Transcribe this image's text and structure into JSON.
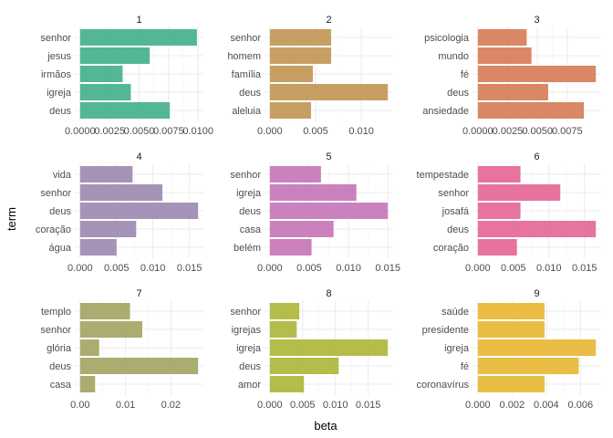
{
  "chart_data": {
    "type": "bar",
    "orientation": "horizontal",
    "layout": "facet-grid-3x3",
    "xlabel": "beta",
    "ylabel": "term",
    "grid": true,
    "legend": "none",
    "panels": [
      {
        "title": "1",
        "color": "#4bb38e",
        "categories": [
          "senhor",
          "jesus",
          "irmãos",
          "igreja",
          "deus"
        ],
        "values": [
          0.0099,
          0.0059,
          0.0036,
          0.0043,
          0.0076
        ],
        "xlim": [
          0,
          0.01
        ],
        "xticks": [
          0,
          0.0025,
          0.005,
          0.0075,
          0.01
        ],
        "xtick_labels": [
          "0.0000",
          "0.0025",
          "0.0050",
          "0.0075",
          "0.0100"
        ]
      },
      {
        "title": "2",
        "color": "#c49a5b",
        "categories": [
          "senhor",
          "homem",
          "família",
          "deus",
          "aleluia"
        ],
        "values": [
          0.0067,
          0.0067,
          0.0047,
          0.0129,
          0.0045
        ],
        "xlim": [
          0,
          0.0129
        ],
        "xticks": [
          0,
          0.005,
          0.01
        ],
        "xtick_labels": [
          "0.000",
          "0.005",
          "0.010"
        ]
      },
      {
        "title": "3",
        "color": "#d7815f",
        "categories": [
          "psicologia",
          "mundo",
          "fé",
          "deus",
          "ansiedade"
        ],
        "values": [
          0.0041,
          0.0045,
          0.0099,
          0.0059,
          0.0089
        ],
        "xlim": [
          0,
          0.0099
        ],
        "xticks": [
          0,
          0.0025,
          0.005,
          0.0075
        ],
        "xtick_labels": [
          "0.0000",
          "0.0025",
          "0.0050",
          "0.0075"
        ]
      },
      {
        "title": "4",
        "color": "#a18db4",
        "categories": [
          "vida",
          "senhor",
          "deus",
          "coração",
          "água"
        ],
        "values": [
          0.0072,
          0.0113,
          0.0162,
          0.0077,
          0.005
        ],
        "xlim": [
          0,
          0.0162
        ],
        "xticks": [
          0,
          0.005,
          0.01,
          0.015
        ],
        "xtick_labels": [
          "0.000",
          "0.005",
          "0.010",
          "0.015"
        ]
      },
      {
        "title": "5",
        "color": "#c87ab9",
        "categories": [
          "senhor",
          "igreja",
          "deus",
          "casa",
          "belém"
        ],
        "values": [
          0.0065,
          0.011,
          0.015,
          0.0081,
          0.0053
        ],
        "xlim": [
          0,
          0.015
        ],
        "xticks": [
          0,
          0.005,
          0.01,
          0.015
        ],
        "xtick_labels": [
          "0.000",
          "0.005",
          "0.010",
          "0.015"
        ]
      },
      {
        "title": "6",
        "color": "#e56d9a",
        "categories": [
          "tempestade",
          "senhor",
          "josafá",
          "deus",
          "coração"
        ],
        "values": [
          0.006,
          0.0116,
          0.006,
          0.0166,
          0.0055
        ],
        "xlim": [
          0,
          0.0166
        ],
        "xticks": [
          0,
          0.005,
          0.01,
          0.015
        ],
        "xtick_labels": [
          "0.000",
          "0.005",
          "0.010",
          "0.015"
        ]
      },
      {
        "title": "7",
        "color": "#a7a868",
        "categories": [
          "templo",
          "senhor",
          "glória",
          "deus",
          "casa"
        ],
        "values": [
          0.011,
          0.0137,
          0.0042,
          0.026,
          0.0033
        ],
        "xlim": [
          0,
          0.026
        ],
        "xticks": [
          0,
          0.01,
          0.02
        ],
        "xtick_labels": [
          "0.00",
          "0.01",
          "0.02"
        ]
      },
      {
        "title": "8",
        "color": "#b0b940",
        "categories": [
          "senhor",
          "igrejas",
          "igreja",
          "deus",
          "amor"
        ],
        "values": [
          0.0045,
          0.0041,
          0.018,
          0.0105,
          0.0052
        ],
        "xlim": [
          0,
          0.018
        ],
        "xticks": [
          0,
          0.005,
          0.01,
          0.015
        ],
        "xtick_labels": [
          "0.000",
          "0.005",
          "0.010",
          "0.015"
        ]
      },
      {
        "title": "9",
        "color": "#e9b93a",
        "categories": [
          "saúde",
          "presidente",
          "igreja",
          "fé",
          "coronavírus"
        ],
        "values": [
          0.0039,
          0.0039,
          0.0069,
          0.0059,
          0.0039
        ],
        "xlim": [
          0,
          0.0069
        ],
        "xticks": [
          0,
          0.002,
          0.004,
          0.006
        ],
        "xtick_labels": [
          "0.000",
          "0.002",
          "0.004",
          "0.006"
        ]
      }
    ]
  }
}
